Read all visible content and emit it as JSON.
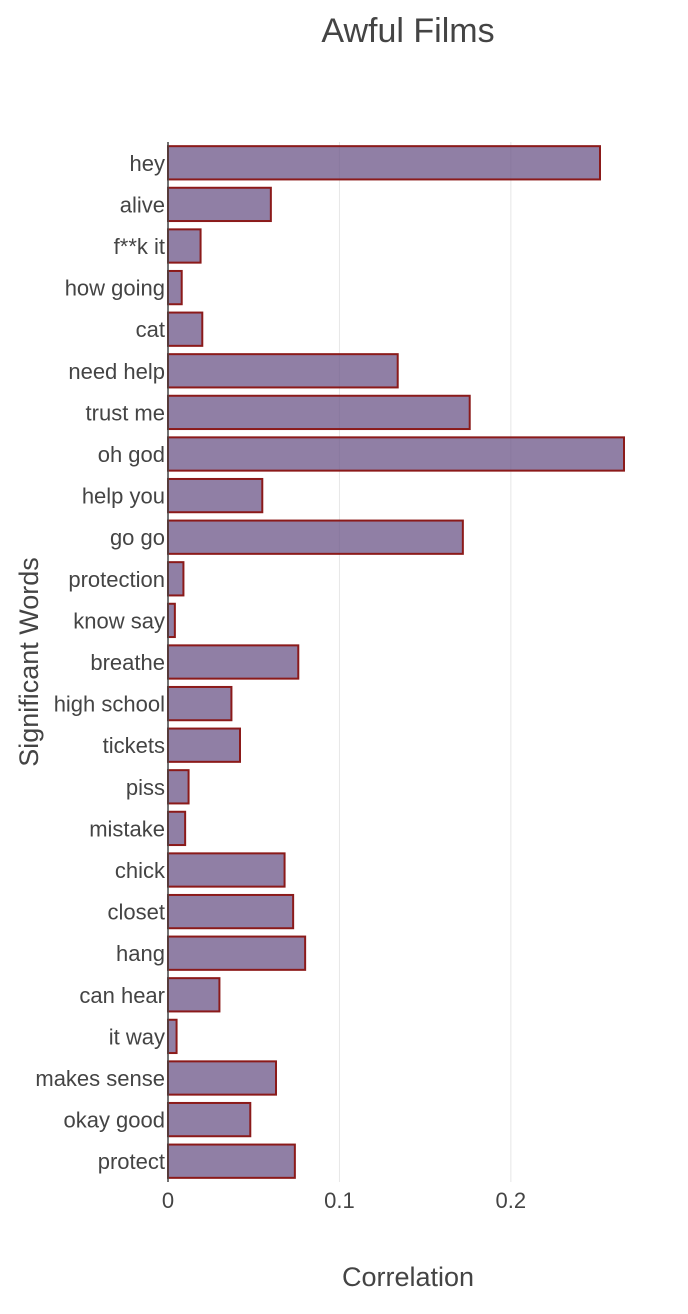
{
  "chart_data": {
    "type": "bar",
    "orientation": "horizontal",
    "title": "Awful Films",
    "xlabel": "Correlation",
    "ylabel": "Significant Words",
    "xlim": [
      0,
      0.28
    ],
    "xticks": [
      {
        "value": 0,
        "label": "0"
      },
      {
        "value": 0.1,
        "label": "0.1"
      },
      {
        "value": 0.2,
        "label": "0.2"
      }
    ],
    "grid": true,
    "bar_fill": "#6b5487",
    "bar_outline": "#8b1a1a",
    "categories": [
      "hey",
      "alive",
      "f**k it",
      "how going",
      "cat",
      "need help",
      "trust me",
      "oh god",
      "help you",
      "go go",
      "protection",
      "know say",
      "breathe",
      "high school",
      "tickets",
      "piss",
      "mistake",
      "chick",
      "closet",
      "hang",
      "can hear",
      "it way",
      "makes sense",
      "okay good",
      "protect"
    ],
    "values": [
      0.252,
      0.06,
      0.019,
      0.008,
      0.02,
      0.134,
      0.176,
      0.266,
      0.055,
      0.172,
      0.009,
      0.004,
      0.076,
      0.037,
      0.042,
      0.012,
      0.01,
      0.068,
      0.073,
      0.08,
      0.03,
      0.005,
      0.063,
      0.048,
      0.074
    ]
  }
}
